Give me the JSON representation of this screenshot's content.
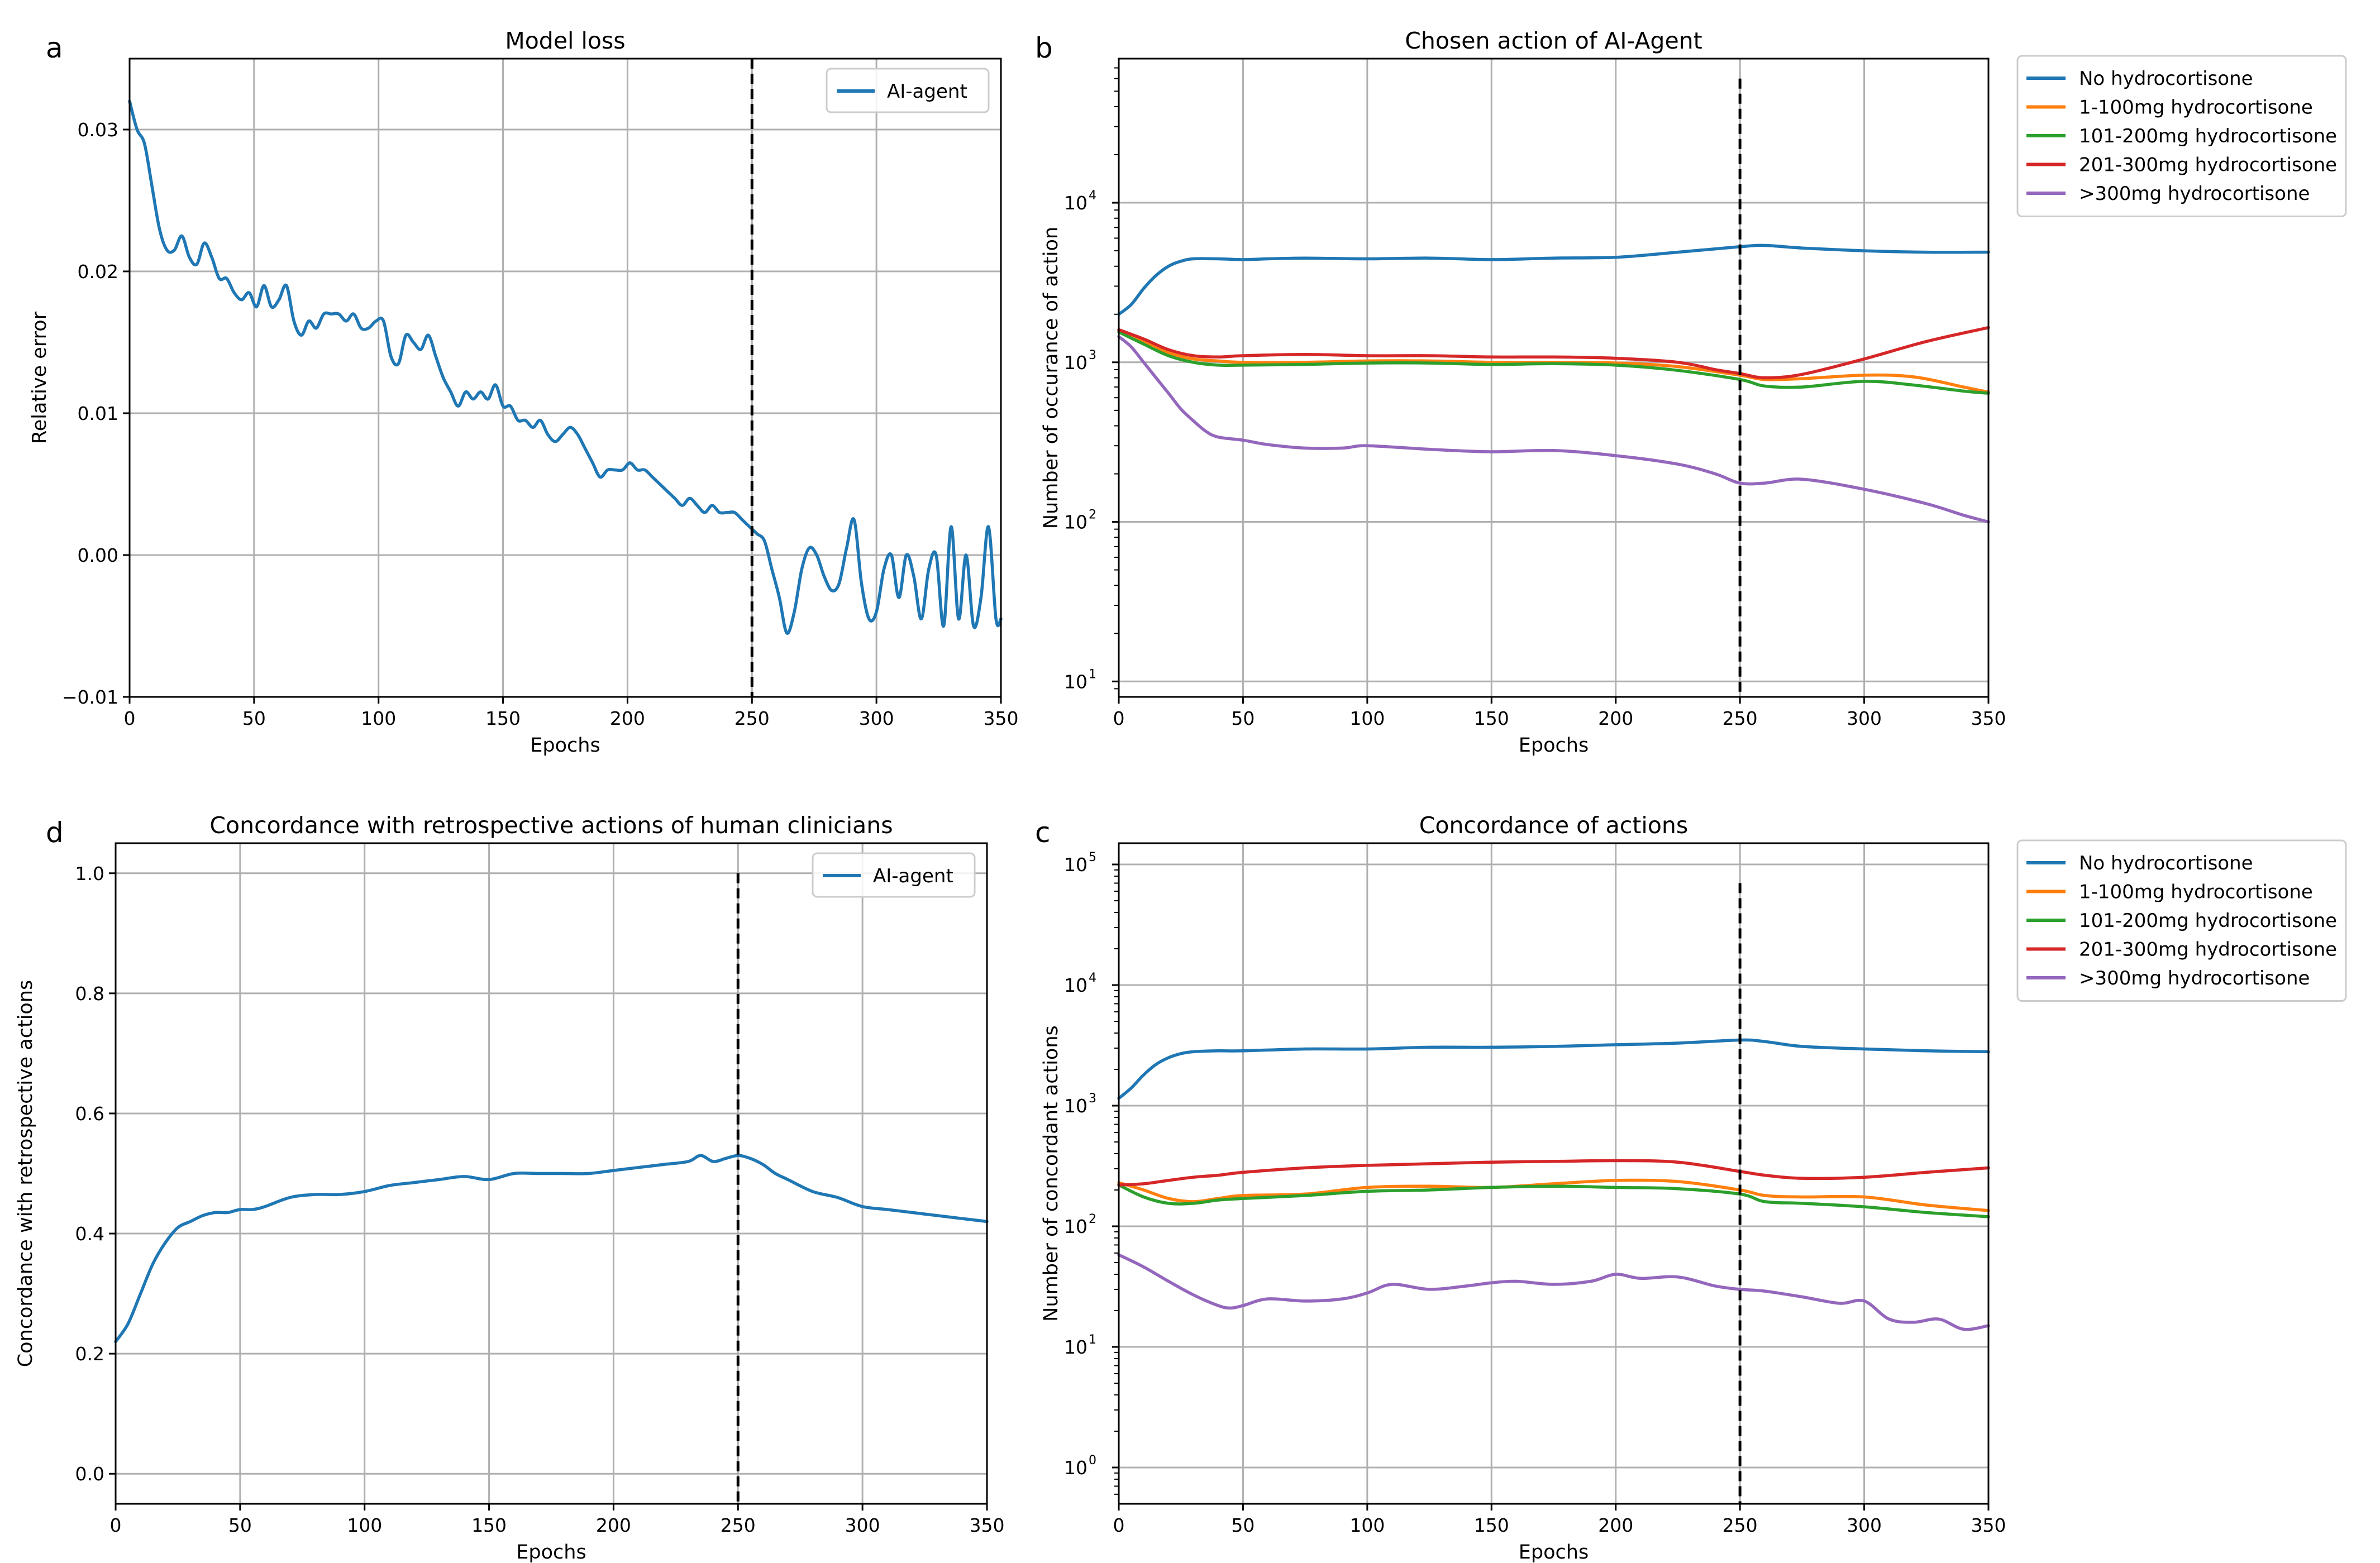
{
  "colors": {
    "blue": "#1f77b4",
    "orange": "#ff7f0e",
    "green": "#2ca02c",
    "red": "#d62728",
    "purple": "#9467bd"
  },
  "chart_data": [
    {
      "id": "a",
      "panel_letter": "a",
      "type": "line",
      "title": "Model loss",
      "xlabel": "Epochs",
      "ylabel": "Relative error",
      "xlim": [
        0,
        350
      ],
      "ylim": [
        -0.01,
        0.035
      ],
      "yscale": "linear",
      "xticks": [
        0,
        50,
        100,
        150,
        200,
        250,
        300,
        350
      ],
      "xtick_labels": [
        "0",
        "50",
        "100",
        "150",
        "200",
        "250",
        "300",
        "350"
      ],
      "yticks": [
        -0.01,
        0.0,
        0.01,
        0.02,
        0.03
      ],
      "ytick_labels": [
        "−0.01",
        "0.00",
        "0.01",
        "0.02",
        "0.03"
      ],
      "grid": true,
      "vline_x": 250,
      "legend_position": "top-right",
      "series": [
        {
          "name": "AI-agent",
          "color": "#1f77b4",
          "x": [
            0,
            3,
            6,
            9,
            12,
            15,
            18,
            21,
            24,
            27,
            30,
            33,
            36,
            39,
            42,
            45,
            48,
            51,
            54,
            57,
            60,
            63,
            66,
            69,
            72,
            75,
            78,
            81,
            84,
            87,
            90,
            93,
            96,
            99,
            102,
            105,
            108,
            111,
            114,
            117,
            120,
            123,
            126,
            129,
            132,
            135,
            138,
            141,
            144,
            147,
            150,
            153,
            156,
            159,
            162,
            165,
            168,
            171,
            174,
            177,
            180,
            183,
            186,
            189,
            192,
            195,
            198,
            201,
            204,
            207,
            210,
            213,
            216,
            219,
            222,
            225,
            228,
            231,
            234,
            237,
            240,
            243,
            246,
            249,
            252,
            255,
            258,
            261,
            264,
            267,
            270,
            273,
            276,
            279,
            282,
            285,
            288,
            291,
            294,
            297,
            300,
            303,
            306,
            309,
            312,
            315,
            318,
            321,
            324,
            327,
            330,
            333,
            336,
            339,
            342,
            345,
            348,
            350
          ],
          "y": [
            0.032,
            0.03,
            0.029,
            0.026,
            0.023,
            0.0215,
            0.0215,
            0.0225,
            0.021,
            0.0205,
            0.022,
            0.021,
            0.0195,
            0.0195,
            0.0185,
            0.018,
            0.0185,
            0.0175,
            0.019,
            0.0175,
            0.018,
            0.019,
            0.0165,
            0.0155,
            0.0165,
            0.016,
            0.017,
            0.017,
            0.017,
            0.0165,
            0.017,
            0.016,
            0.016,
            0.0165,
            0.0165,
            0.014,
            0.0135,
            0.0155,
            0.015,
            0.0145,
            0.0155,
            0.014,
            0.0125,
            0.0115,
            0.0105,
            0.0115,
            0.011,
            0.0115,
            0.011,
            0.012,
            0.0105,
            0.0105,
            0.0095,
            0.0095,
            0.009,
            0.0095,
            0.0085,
            0.008,
            0.0085,
            0.009,
            0.0085,
            0.0075,
            0.0065,
            0.0055,
            0.006,
            0.006,
            0.006,
            0.0065,
            0.006,
            0.006,
            0.0055,
            0.005,
            0.0045,
            0.004,
            0.0035,
            0.004,
            0.0035,
            0.003,
            0.0035,
            0.003,
            0.003,
            0.003,
            0.0025,
            0.002,
            0.0015,
            0.001,
            -0.001,
            -0.003,
            -0.0055,
            -0.004,
            -0.001,
            0.0005,
            0.0,
            -0.0015,
            -0.0025,
            -0.002,
            0.0005,
            0.0025,
            -0.002,
            -0.0045,
            -0.004,
            -0.001,
            0.0,
            -0.003,
            0.0,
            -0.0015,
            -0.0045,
            -0.001,
            0.0,
            -0.005,
            0.002,
            -0.0045,
            0.0,
            -0.005,
            -0.003,
            0.002,
            -0.0045,
            -0.0045
          ]
        }
      ]
    },
    {
      "id": "b",
      "panel_letter": "b",
      "type": "line",
      "title": "Chosen action of AI-Agent",
      "xlabel": "Epochs",
      "ylabel": "Number of occurance of action",
      "xlim": [
        0,
        350
      ],
      "ylim": [
        8,
        80000
      ],
      "yscale": "log",
      "xticks": [
        0,
        50,
        100,
        150,
        200,
        250,
        300,
        350
      ],
      "xtick_labels": [
        "0",
        "50",
        "100",
        "150",
        "200",
        "250",
        "300",
        "350"
      ],
      "yticks": [
        10,
        100,
        1000,
        10000
      ],
      "ytick_base": "10",
      "ytick_exponents": [
        "1",
        "2",
        "3",
        "4"
      ],
      "grid": true,
      "vline_x": 250,
      "vline_ymax": 60000,
      "legend_position": "outside-right",
      "series": [
        {
          "name": "No hydrocortisone",
          "color": "#1f77b4",
          "x": [
            0,
            5,
            10,
            15,
            20,
            25,
            30,
            40,
            50,
            60,
            75,
            100,
            125,
            150,
            175,
            200,
            225,
            250,
            260,
            275,
            300,
            325,
            350
          ],
          "y": [
            2000,
            2300,
            2900,
            3500,
            4000,
            4300,
            4450,
            4450,
            4400,
            4450,
            4500,
            4450,
            4500,
            4400,
            4500,
            4550,
            4900,
            5300,
            5400,
            5200,
            5000,
            4900,
            4900
          ]
        },
        {
          "name": "1-100mg hydrocortisone",
          "color": "#ff7f0e",
          "x": [
            0,
            10,
            20,
            30,
            40,
            50,
            75,
            100,
            125,
            150,
            175,
            200,
            225,
            250,
            260,
            275,
            300,
            320,
            340,
            350
          ],
          "y": [
            1600,
            1350,
            1150,
            1050,
            1020,
            1000,
            1000,
            1020,
            1020,
            1000,
            1000,
            990,
            940,
            830,
            780,
            790,
            830,
            810,
            700,
            650
          ]
        },
        {
          "name": "101-200mg hydrocortisone",
          "color": "#2ca02c",
          "x": [
            0,
            10,
            20,
            30,
            40,
            50,
            75,
            100,
            125,
            150,
            175,
            200,
            225,
            250,
            260,
            275,
            300,
            320,
            340,
            350
          ],
          "y": [
            1550,
            1300,
            1100,
            1000,
            960,
            960,
            970,
            990,
            990,
            970,
            980,
            960,
            890,
            780,
            710,
            700,
            760,
            720,
            660,
            640
          ]
        },
        {
          "name": "201-300mg hydrocortisone",
          "color": "#d62728",
          "x": [
            0,
            10,
            20,
            30,
            40,
            50,
            75,
            100,
            125,
            150,
            175,
            200,
            225,
            240,
            250,
            260,
            275,
            300,
            325,
            350
          ],
          "y": [
            1600,
            1400,
            1200,
            1100,
            1080,
            1100,
            1120,
            1100,
            1100,
            1080,
            1080,
            1060,
            1000,
            900,
            850,
            800,
            840,
            1050,
            1350,
            1650
          ]
        },
        {
          "name": ">300mg hydrocortisone",
          "color": "#9467bd",
          "x": [
            0,
            5,
            10,
            15,
            20,
            25,
            30,
            35,
            40,
            50,
            60,
            75,
            90,
            100,
            125,
            150,
            175,
            200,
            225,
            240,
            250,
            260,
            275,
            300,
            325,
            340,
            350
          ],
          "y": [
            1450,
            1250,
            1000,
            800,
            640,
            510,
            430,
            370,
            340,
            325,
            305,
            290,
            290,
            300,
            285,
            275,
            280,
            260,
            230,
            200,
            175,
            175,
            185,
            160,
            130,
            110,
            100
          ]
        }
      ]
    },
    {
      "id": "d",
      "panel_letter": "d",
      "type": "line",
      "title": "Concordance with retrospective actions of human clinicians",
      "xlabel": "Epochs",
      "ylabel": "Concordance with retrospective actions",
      "xlim": [
        0,
        350
      ],
      "ylim": [
        -0.05,
        1.05
      ],
      "yscale": "linear",
      "xticks": [
        0,
        50,
        100,
        150,
        200,
        250,
        300,
        350
      ],
      "xtick_labels": [
        "0",
        "50",
        "100",
        "150",
        "200",
        "250",
        "300",
        "350"
      ],
      "yticks": [
        0.0,
        0.2,
        0.4,
        0.6,
        0.8,
        1.0
      ],
      "ytick_labels": [
        "0.0",
        "0.2",
        "0.4",
        "0.6",
        "0.8",
        "1.0"
      ],
      "grid": true,
      "vline_x": 250,
      "vline_ymax": 1.0,
      "legend_position": "top-right",
      "series": [
        {
          "name": "AI-agent",
          "color": "#1f77b4",
          "x": [
            0,
            5,
            10,
            15,
            20,
            25,
            30,
            35,
            40,
            45,
            50,
            55,
            60,
            70,
            80,
            90,
            100,
            110,
            120,
            130,
            140,
            150,
            160,
            170,
            180,
            190,
            200,
            210,
            220,
            230,
            235,
            240,
            245,
            250,
            255,
            260,
            265,
            270,
            280,
            290,
            300,
            310,
            320,
            330,
            340,
            350
          ],
          "y": [
            0.22,
            0.25,
            0.3,
            0.35,
            0.385,
            0.41,
            0.42,
            0.43,
            0.435,
            0.435,
            0.44,
            0.44,
            0.445,
            0.46,
            0.465,
            0.465,
            0.47,
            0.48,
            0.485,
            0.49,
            0.495,
            0.49,
            0.5,
            0.5,
            0.5,
            0.5,
            0.505,
            0.51,
            0.515,
            0.52,
            0.53,
            0.52,
            0.525,
            0.53,
            0.525,
            0.515,
            0.5,
            0.49,
            0.47,
            0.46,
            0.445,
            0.44,
            0.435,
            0.43,
            0.425,
            0.42
          ]
        }
      ]
    },
    {
      "id": "c",
      "panel_letter": "c",
      "type": "line",
      "title": "Concordance of actions",
      "xlabel": "Epochs",
      "ylabel": "Number of concordant actions",
      "xlim": [
        0,
        350
      ],
      "ylim": [
        0.5,
        150000
      ],
      "yscale": "log",
      "xticks": [
        0,
        50,
        100,
        150,
        200,
        250,
        300,
        350
      ],
      "xtick_labels": [
        "0",
        "50",
        "100",
        "150",
        "200",
        "250",
        "300",
        "350"
      ],
      "yticks": [
        1,
        10,
        100,
        1000,
        10000,
        100000
      ],
      "ytick_base": "10",
      "ytick_exponents": [
        "0",
        "1",
        "2",
        "3",
        "4",
        "5"
      ],
      "grid": true,
      "vline_x": 250,
      "vline_ymax": 70000,
      "legend_position": "outside-right",
      "series": [
        {
          "name": "No hydrocortisone",
          "color": "#1f77b4",
          "x": [
            0,
            5,
            10,
            15,
            20,
            25,
            30,
            40,
            50,
            75,
            100,
            125,
            150,
            175,
            200,
            225,
            250,
            260,
            275,
            300,
            325,
            350
          ],
          "y": [
            1150,
            1400,
            1800,
            2200,
            2500,
            2700,
            2800,
            2850,
            2850,
            2950,
            2950,
            3050,
            3050,
            3100,
            3200,
            3300,
            3500,
            3400,
            3100,
            2950,
            2850,
            2800
          ]
        },
        {
          "name": "1-100mg hydrocortisone",
          "color": "#ff7f0e",
          "x": [
            0,
            10,
            20,
            30,
            40,
            50,
            75,
            100,
            125,
            150,
            175,
            200,
            225,
            250,
            260,
            275,
            300,
            325,
            350
          ],
          "y": [
            230,
            200,
            170,
            160,
            170,
            180,
            185,
            210,
            215,
            210,
            225,
            240,
            235,
            200,
            180,
            175,
            175,
            150,
            135
          ]
        },
        {
          "name": "101-200mg hydrocortisone",
          "color": "#2ca02c",
          "x": [
            0,
            10,
            20,
            30,
            40,
            50,
            75,
            100,
            125,
            150,
            175,
            200,
            225,
            250,
            260,
            275,
            300,
            325,
            350
          ],
          "y": [
            220,
            175,
            155,
            155,
            165,
            170,
            180,
            195,
            200,
            210,
            215,
            210,
            205,
            185,
            160,
            155,
            145,
            130,
            120
          ]
        },
        {
          "name": "201-300mg hydrocortisone",
          "color": "#d62728",
          "x": [
            0,
            10,
            20,
            30,
            40,
            50,
            75,
            100,
            125,
            150,
            175,
            200,
            225,
            250,
            260,
            275,
            300,
            325,
            350
          ],
          "y": [
            220,
            225,
            240,
            255,
            265,
            280,
            305,
            320,
            330,
            340,
            345,
            350,
            340,
            285,
            265,
            250,
            255,
            280,
            305
          ]
        },
        {
          "name": ">300mg hydrocortisone",
          "color": "#9467bd",
          "x": [
            0,
            10,
            20,
            30,
            40,
            45,
            50,
            60,
            75,
            90,
            100,
            110,
            125,
            140,
            150,
            160,
            175,
            190,
            200,
            210,
            225,
            240,
            250,
            260,
            275,
            290,
            300,
            310,
            320,
            330,
            340,
            350
          ],
          "y": [
            58,
            46,
            35,
            27,
            22,
            21,
            22,
            25,
            24,
            25,
            28,
            33,
            30,
            32,
            34,
            35,
            33,
            35,
            40,
            37,
            38,
            32,
            30,
            29,
            26,
            23,
            24,
            17,
            16,
            17,
            14,
            15
          ]
        }
      ]
    }
  ]
}
